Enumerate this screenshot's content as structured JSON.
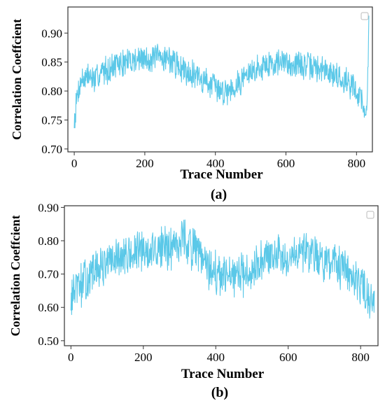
{
  "chart_data": [
    {
      "type": "line",
      "panel_label": "(a)",
      "xlabel": "Trace Number",
      "ylabel": "Correlation Coeffcient",
      "xlim": [
        -18,
        845
      ],
      "ylim": [
        0.695,
        0.945
      ],
      "xticks": [
        0,
        200,
        400,
        600,
        800
      ],
      "xtick_labels": [
        "0",
        "200",
        "400",
        "600",
        "800"
      ],
      "yticks": [
        0.7,
        0.75,
        0.8,
        0.85,
        0.9
      ],
      "ytick_labels": [
        "0.70",
        "0.75",
        "0.80",
        "0.85",
        "0.90"
      ],
      "legend": "top-right (empty)",
      "color": "#5bc8e8",
      "series": [
        {
          "x": [
            0,
            10,
            20,
            40,
            60,
            80,
            100,
            120,
            140,
            160,
            180,
            200,
            220,
            240,
            260,
            280,
            290,
            300,
            320,
            340,
            360,
            380,
            400,
            420,
            440,
            460,
            480,
            500,
            520,
            540,
            560,
            580,
            600,
            620,
            640,
            660,
            680,
            700,
            720,
            740,
            760,
            780,
            800,
            810,
            820,
            825,
            830,
            835
          ],
          "y": [
            0.75,
            0.8,
            0.82,
            0.825,
            0.82,
            0.835,
            0.84,
            0.845,
            0.848,
            0.853,
            0.855,
            0.856,
            0.855,
            0.857,
            0.858,
            0.852,
            0.845,
            0.84,
            0.835,
            0.83,
            0.82,
            0.815,
            0.805,
            0.8,
            0.805,
            0.81,
            0.825,
            0.83,
            0.84,
            0.845,
            0.848,
            0.85,
            0.849,
            0.847,
            0.845,
            0.843,
            0.84,
            0.838,
            0.833,
            0.828,
            0.82,
            0.815,
            0.8,
            0.79,
            0.78,
            0.745,
            0.77,
            0.93
          ]
        }
      ]
    },
    {
      "type": "line",
      "panel_label": "(b)",
      "xlabel": "Trace Number",
      "ylabel": "Correlation Coeffcient",
      "xlim": [
        -18,
        848
      ],
      "ylim": [
        0.485,
        0.905
      ],
      "xticks": [
        0,
        200,
        400,
        600,
        800
      ],
      "xtick_labels": [
        "0",
        "200",
        "400",
        "600",
        "800"
      ],
      "yticks": [
        0.5,
        0.6,
        0.7,
        0.8,
        0.9
      ],
      "ytick_labels": [
        "0.50",
        "0.60",
        "0.70",
        "0.80",
        "0.90"
      ],
      "legend": "top-right (empty)",
      "color": "#5bc8e8",
      "series": [
        {
          "x": [
            0,
            10,
            20,
            40,
            60,
            80,
            100,
            120,
            140,
            160,
            180,
            200,
            220,
            240,
            260,
            280,
            300,
            310,
            320,
            340,
            360,
            380,
            400,
            420,
            440,
            460,
            480,
            500,
            520,
            540,
            560,
            580,
            600,
            620,
            640,
            660,
            680,
            700,
            720,
            740,
            760,
            780,
            800,
            810,
            820,
            830,
            838
          ],
          "y": [
            0.62,
            0.65,
            0.66,
            0.68,
            0.7,
            0.72,
            0.73,
            0.74,
            0.745,
            0.755,
            0.76,
            0.765,
            0.77,
            0.775,
            0.78,
            0.785,
            0.8,
            0.81,
            0.795,
            0.775,
            0.745,
            0.72,
            0.7,
            0.69,
            0.685,
            0.69,
            0.7,
            0.72,
            0.735,
            0.745,
            0.75,
            0.755,
            0.76,
            0.77,
            0.775,
            0.765,
            0.755,
            0.745,
            0.73,
            0.715,
            0.7,
            0.68,
            0.66,
            0.65,
            0.64,
            0.62,
            0.65
          ]
        }
      ]
    }
  ]
}
